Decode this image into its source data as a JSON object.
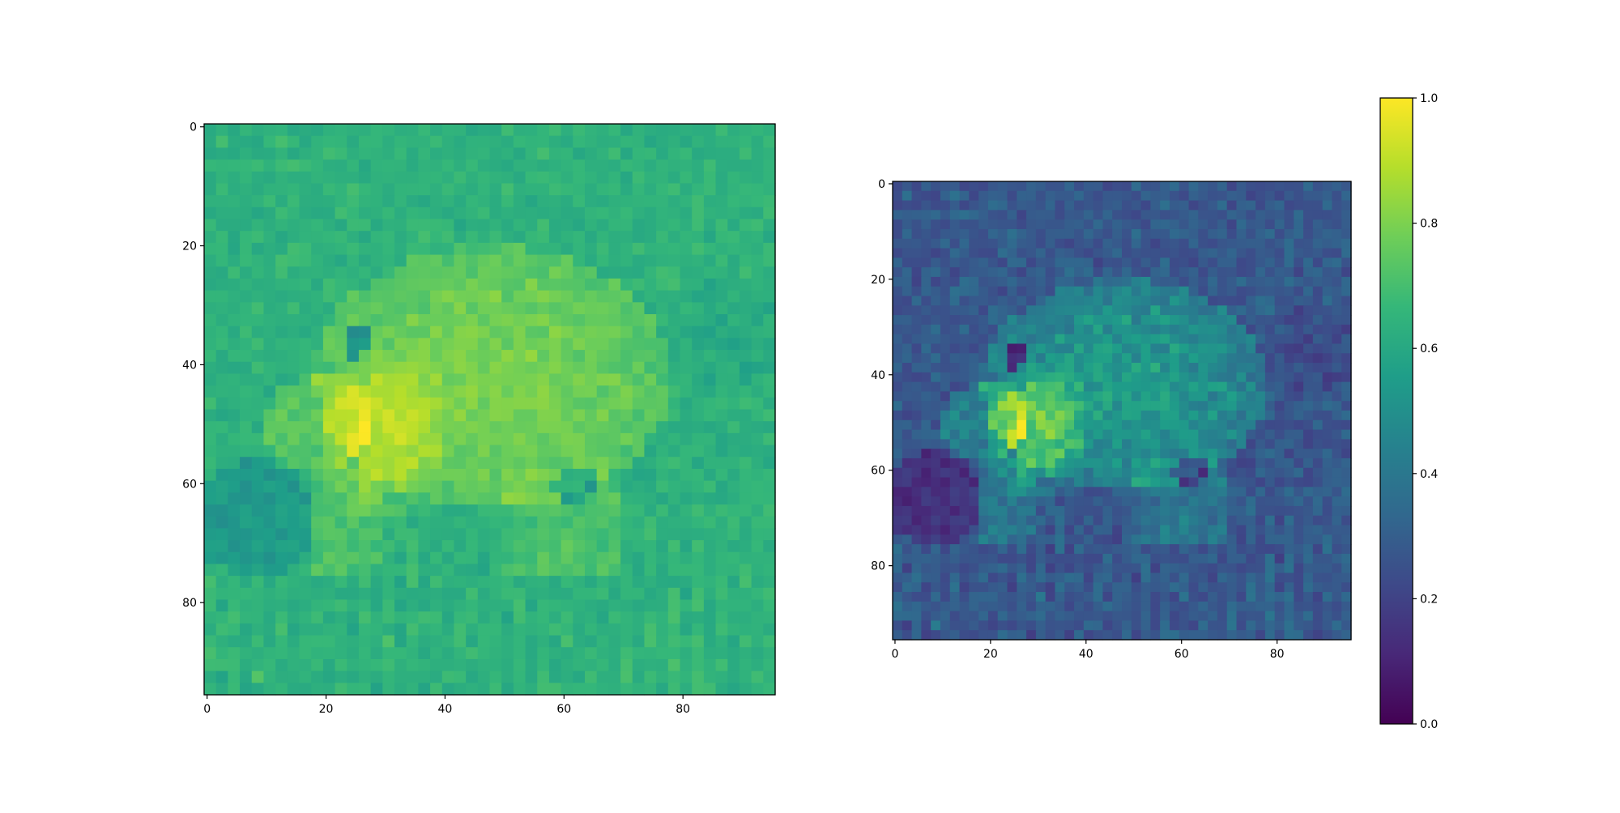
{
  "chart_data": [
    {
      "type": "heatmap",
      "title": "",
      "xlabel": "",
      "ylabel": "",
      "xlim": [
        -0.5,
        95.5
      ],
      "ylim": [
        95.5,
        -0.5
      ],
      "xticks": [
        0,
        20,
        40,
        60,
        80
      ],
      "yticks": [
        0,
        20,
        40,
        60,
        80
      ],
      "grid": false,
      "shape": [
        96,
        96
      ],
      "colormap": "viridis",
      "value_range": [
        0.35,
        1.0
      ],
      "content": "bobcat photograph (grayscale intensity mapped to viridis)"
    },
    {
      "type": "heatmap",
      "title": "",
      "xlabel": "",
      "ylabel": "",
      "xlim": [
        -0.5,
        95.5
      ],
      "ylim": [
        95.5,
        -0.5
      ],
      "xticks": [
        0,
        20,
        40,
        60,
        80
      ],
      "yticks": [
        0,
        20,
        40,
        60,
        80
      ],
      "grid": false,
      "shape": [
        96,
        96
      ],
      "colormap": "viridis",
      "value_range": [
        0.0,
        1.0
      ],
      "content": "same bobcat photograph, contrast-stretched"
    }
  ],
  "colorbar": {
    "colormap": "viridis",
    "range": [
      0.0,
      1.0
    ],
    "ticks": [
      0.0,
      0.2,
      0.4,
      0.6,
      0.8,
      1.0
    ],
    "tick_labels": [
      "0.0",
      "0.2",
      "0.4",
      "0.6",
      "0.8",
      "1.0"
    ]
  },
  "colors": {
    "viridis": [
      "#440154",
      "#482878",
      "#3e4989",
      "#31688e",
      "#26828e",
      "#1f9e89",
      "#35b779",
      "#6ece58",
      "#b5de2b",
      "#fde725"
    ]
  }
}
